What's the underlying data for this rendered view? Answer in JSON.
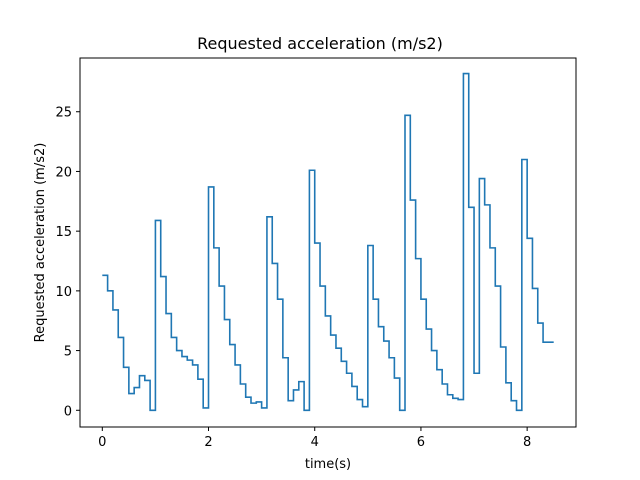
{
  "chart_data": {
    "type": "line",
    "title": "Requested acceleration (m/s2)",
    "xlabel": "time(s)",
    "ylabel": "Requested acceleration (m/s2)",
    "xlim": [
      -0.42,
      8.92
    ],
    "ylim": [
      -1.4,
      29.5
    ],
    "xticks": [
      0,
      2,
      4,
      6,
      8
    ],
    "yticks": [
      0,
      5,
      10,
      15,
      20,
      25
    ],
    "grid": false,
    "color": "#1f77b4",
    "series": [
      {
        "step": "post",
        "x": [
          0,
          0.1,
          0.2,
          0.3,
          0.4,
          0.5,
          0.6,
          0.7,
          0.8,
          0.9,
          1.0,
          1.1,
          1.2,
          1.3,
          1.4,
          1.5,
          1.6,
          1.7,
          1.8,
          1.9,
          2.0,
          2.1,
          2.2,
          2.3,
          2.4,
          2.5,
          2.6,
          2.7,
          2.8,
          2.9,
          3.0,
          3.1,
          3.2,
          3.3,
          3.4,
          3.5,
          3.6,
          3.7,
          3.8,
          3.9,
          4.0,
          4.1,
          4.2,
          4.3,
          4.4,
          4.5,
          4.6,
          4.7,
          4.8,
          4.9,
          5.0,
          5.1,
          5.2,
          5.3,
          5.4,
          5.5,
          5.6,
          5.7,
          5.8,
          5.9,
          6.0,
          6.1,
          6.2,
          6.3,
          6.4,
          6.5,
          6.6,
          6.7,
          6.8,
          6.9,
          7.0,
          7.1,
          7.2,
          7.3,
          7.4,
          7.5,
          7.6,
          7.7,
          7.8,
          7.9,
          8.0,
          8.1,
          8.2,
          8.3,
          8.5
        ],
        "y": [
          11.3,
          10.0,
          8.4,
          6.1,
          3.6,
          1.4,
          1.9,
          2.9,
          2.5,
          0.0,
          15.9,
          11.2,
          8.1,
          6.1,
          5.0,
          4.5,
          4.2,
          3.8,
          2.6,
          0.2,
          18.7,
          13.6,
          10.4,
          7.6,
          5.5,
          3.8,
          2.2,
          1.1,
          0.6,
          0.7,
          0.2,
          16.2,
          12.3,
          9.3,
          4.4,
          0.8,
          1.7,
          2.4,
          0.0,
          20.1,
          14.0,
          10.4,
          7.9,
          6.3,
          5.2,
          4.1,
          3.1,
          2.0,
          0.9,
          0.3,
          13.8,
          9.3,
          7.0,
          5.8,
          4.4,
          2.7,
          0.0,
          24.7,
          17.6,
          12.7,
          9.3,
          6.8,
          5.0,
          3.4,
          2.2,
          1.3,
          1.0,
          0.9,
          28.2,
          17.0,
          3.1,
          19.4,
          17.2,
          13.6,
          10.4,
          5.3,
          2.3,
          0.8,
          0.0,
          21.0,
          14.4,
          10.2,
          7.3,
          5.7,
          5.7
        ]
      }
    ]
  }
}
